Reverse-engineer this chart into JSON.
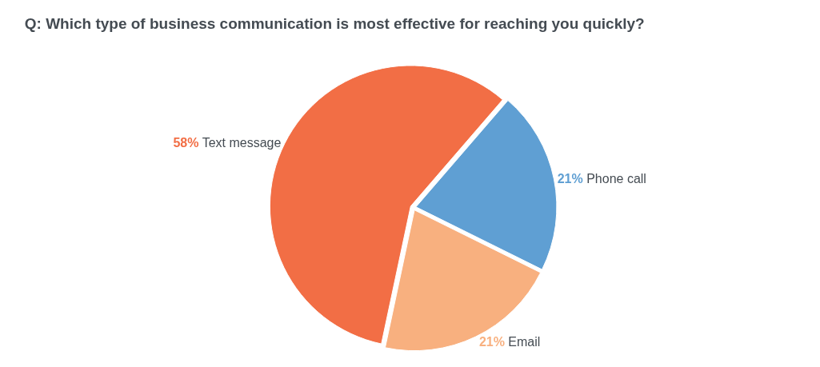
{
  "chart_data": {
    "type": "pie",
    "title": "Q: Which type of business communication is most effective for reaching you quickly?",
    "categories": [
      "Text message",
      "Phone call",
      "Email"
    ],
    "values": [
      58,
      21,
      21
    ],
    "colors": [
      "#f26e45",
      "#5f9fd3",
      "#f8b07f"
    ],
    "value_labels": [
      "58%",
      "21%",
      "21%"
    ],
    "legend": false
  }
}
